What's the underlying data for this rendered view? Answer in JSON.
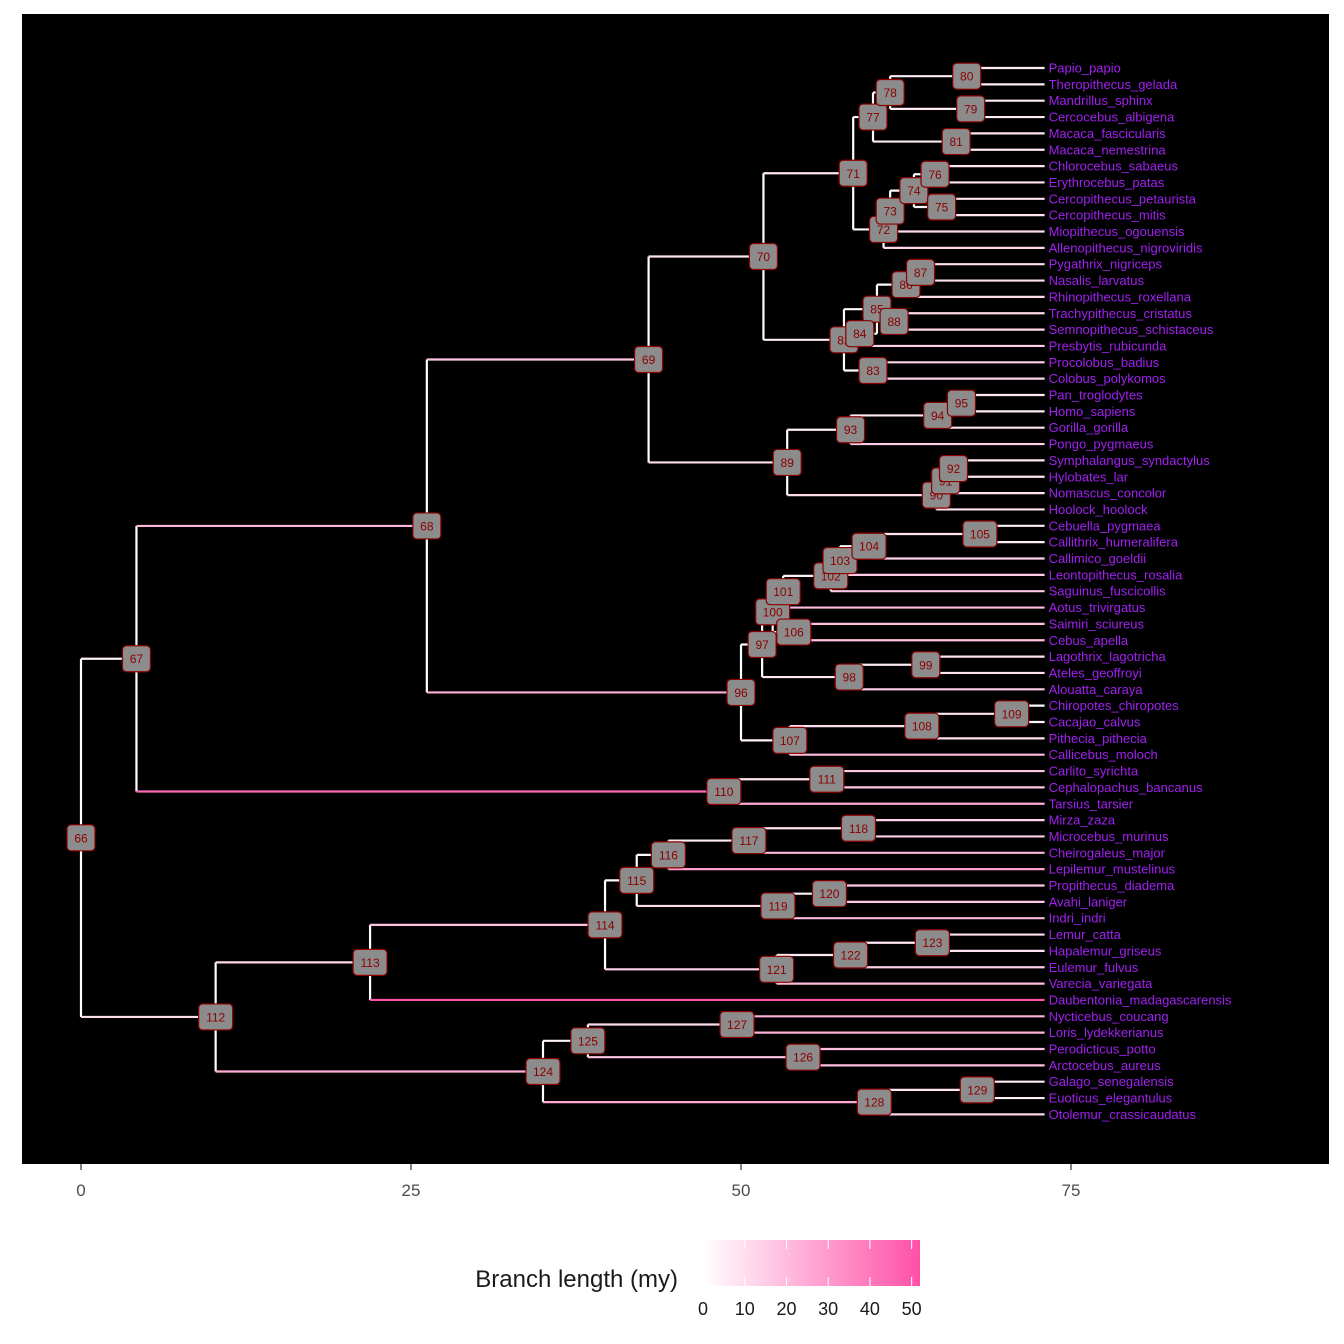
{
  "chart_data": {
    "type": "tree",
    "xaxis": {
      "ticks": [
        0,
        25,
        50,
        75
      ],
      "xlim": [
        -4.4,
        94.5
      ]
    },
    "legend": {
      "title": "Branch length (my)",
      "ticks": [
        0,
        10,
        20,
        30,
        40,
        50
      ],
      "range": [
        0,
        52
      ],
      "colors": [
        "#ffffff",
        "#ff50a8"
      ],
      "position": "bottom"
    },
    "colors": {
      "panel": "#000000",
      "tip_label": "#a020f0",
      "node_fill": "#8c8c8c",
      "node_border": "#8b0000",
      "node_text": "#8b0000"
    },
    "tips": [
      "Papio_papio",
      "Theropithecus_gelada",
      "Mandrillus_sphinx",
      "Cercocebus_albigena",
      "Macaca_fascicularis",
      "Macaca_nemestrina",
      "Chlorocebus_sabaeus",
      "Erythrocebus_patas",
      "Cercopithecus_petaurista",
      "Cercopithecus_mitis",
      "Miopithecus_ogouensis",
      "Allenopithecus_nigroviridis",
      "Pygathrix_nigriceps",
      "Nasalis_larvatus",
      "Rhinopithecus_roxellana",
      "Trachypithecus_cristatus",
      "Semnopithecus_schistaceus",
      "Presbytis_rubicunda",
      "Procolobus_badius",
      "Colobus_polykomos",
      "Pan_troglodytes",
      "Homo_sapiens",
      "Gorilla_gorilla",
      "Pongo_pygmaeus",
      "Symphalangus_syndactylus",
      "Hylobates_lar",
      "Nomascus_concolor",
      "Hoolock_hoolock",
      "Cebuella_pygmaea",
      "Callithrix_humeralifera",
      "Callimico_goeldii",
      "Leontopithecus_rosalia",
      "Saguinus_fuscicollis",
      "Aotus_trivirgatus",
      "Saimiri_sciureus",
      "Cebus_apella",
      "Lagothrix_lagotricha",
      "Ateles_geoffroyi",
      "Alouatta_caraya",
      "Chiropotes_chiropotes",
      "Cacajao_calvus",
      "Pithecia_pithecia",
      "Callicebus_moloch",
      "Carlito_syrichta",
      "Cephalopachus_bancanus",
      "Tarsius_tarsier",
      "Mirza_zaza",
      "Microcebus_murinus",
      "Cheirogaleus_major",
      "Lepilemur_mustelinus",
      "Propithecus_diadema",
      "Avahi_laniger",
      "Indri_indri",
      "Lemur_catta",
      "Hapalemur_griseus",
      "Eulemur_fulvus",
      "Varecia_variegata",
      "Daubentonia_madagascarensis",
      "Nycticebus_coucang",
      "Loris_lydekkerianus",
      "Perodicticus_potto",
      "Arctocebus_aureus",
      "Galago_senegalensis",
      "Euoticus_elegantulus",
      "Otolemur_crassicaudatus"
    ],
    "tip_depth": 73,
    "nodes": [
      {
        "id": "66",
        "x": 0,
        "children": [
          "67",
          "112"
        ]
      },
      {
        "id": "67",
        "x": 4.2,
        "children": [
          "68",
          "110"
        ]
      },
      {
        "id": "68",
        "x": 26.2,
        "children": [
          "69",
          "96"
        ]
      },
      {
        "id": "69",
        "x": 43,
        "children": [
          "70",
          "89"
        ]
      },
      {
        "id": "70",
        "x": 51.7,
        "children": [
          "71",
          "82"
        ]
      },
      {
        "id": "71",
        "x": 58.5,
        "children": [
          "77",
          "72"
        ]
      },
      {
        "id": "77",
        "x": 60.0,
        "children": [
          "78",
          "81"
        ]
      },
      {
        "id": "78",
        "x": 61.3,
        "children": [
          "80",
          "79"
        ]
      },
      {
        "id": "80",
        "x": 67.1,
        "children": [
          "t:Papio_papio",
          "t:Theropithecus_gelada"
        ]
      },
      {
        "id": "79",
        "x": 67.4,
        "children": [
          "t:Mandrillus_sphinx",
          "t:Cercocebus_albigena"
        ]
      },
      {
        "id": "81",
        "x": 66.3,
        "children": [
          "t:Macaca_fascicularis",
          "t:Macaca_nemestrina"
        ]
      },
      {
        "id": "72",
        "x": 60.8,
        "children": [
          "73",
          "t:Allenopithecus_nigroviridis"
        ]
      },
      {
        "id": "73",
        "x": 61.3,
        "children": [
          "74",
          "t:Miopithecus_ogouensis"
        ]
      },
      {
        "id": "74",
        "x": 63.1,
        "children": [
          "76",
          "75"
        ]
      },
      {
        "id": "76",
        "x": 64.7,
        "children": [
          "t:Chlorocebus_sabaeus",
          "t:Erythrocebus_patas"
        ]
      },
      {
        "id": "75",
        "x": 65.2,
        "children": [
          "t:Cercopithecus_petaurista",
          "t:Cercopithecus_mitis"
        ]
      },
      {
        "id": "82",
        "x": 57.8,
        "children": [
          "85",
          "83"
        ]
      },
      {
        "id": "85",
        "x": 60.3,
        "children": [
          "86",
          "84"
        ]
      },
      {
        "id": "86",
        "x": 62.5,
        "children": [
          "87",
          "t:Rhinopithecus_roxellana"
        ]
      },
      {
        "id": "87",
        "x": 63.6,
        "children": [
          "t:Pygathrix_nigriceps",
          "t:Nasalis_larvatus"
        ]
      },
      {
        "id": "84",
        "x": 59.0,
        "children": [
          "88",
          "t:Presbytis_rubicunda"
        ]
      },
      {
        "id": "88",
        "x": 61.6,
        "children": [
          "t:Trachypithecus_cristatus",
          "t:Semnopithecus_schistaceus"
        ]
      },
      {
        "id": "83",
        "x": 60.0,
        "children": [
          "t:Procolobus_badius",
          "t:Colobus_polykomos"
        ]
      },
      {
        "id": "89",
        "x": 53.5,
        "children": [
          "93",
          "90"
        ]
      },
      {
        "id": "93",
        "x": 58.3,
        "children": [
          "94",
          "t:Pongo_pygmaeus"
        ]
      },
      {
        "id": "94",
        "x": 64.9,
        "children": [
          "95",
          "t:Gorilla_gorilla"
        ]
      },
      {
        "id": "95",
        "x": 66.7,
        "children": [
          "t:Pan_troglodytes",
          "t:Homo_sapiens"
        ]
      },
      {
        "id": "90",
        "x": 64.8,
        "children": [
          "91",
          "t:Hoolock_hoolock"
        ]
      },
      {
        "id": "91",
        "x": 65.5,
        "children": [
          "92",
          "t:Nomascus_concolor"
        ]
      },
      {
        "id": "92",
        "x": 66.1,
        "children": [
          "t:Symphalangus_syndactylus",
          "t:Hylobates_lar"
        ]
      },
      {
        "id": "96",
        "x": 50,
        "children": [
          "97",
          "107"
        ]
      },
      {
        "id": "97",
        "x": 51.6,
        "children": [
          "100",
          "98"
        ]
      },
      {
        "id": "100",
        "x": 52.4,
        "children": [
          "101",
          "106"
        ]
      },
      {
        "id": "101",
        "x": 53.2,
        "children": [
          "102",
          "t:Aotus_trivirgatus"
        ]
      },
      {
        "id": "102",
        "x": 56.8,
        "children": [
          "103",
          "t:Saguinus_fuscicollis"
        ]
      },
      {
        "id": "103",
        "x": 57.5,
        "children": [
          "104",
          "t:Leontopithecus_rosalia"
        ]
      },
      {
        "id": "104",
        "x": 59.7,
        "children": [
          "105",
          "t:Callimico_goeldii"
        ]
      },
      {
        "id": "105",
        "x": 68.1,
        "children": [
          "t:Cebuella_pygmaea",
          "t:Callithrix_humeralifera"
        ]
      },
      {
        "id": "106",
        "x": 54.0,
        "children": [
          "t:Saimiri_sciureus",
          "t:Cebus_apella"
        ]
      },
      {
        "id": "98",
        "x": 58.2,
        "children": [
          "99",
          "t:Alouatta_caraya"
        ]
      },
      {
        "id": "99",
        "x": 64.0,
        "children": [
          "t:Lagothrix_lagotricha",
          "t:Ateles_geoffroyi"
        ]
      },
      {
        "id": "107",
        "x": 53.7,
        "children": [
          "108",
          "t:Callicebus_moloch"
        ]
      },
      {
        "id": "108",
        "x": 63.7,
        "children": [
          "109",
          "t:Pithecia_pithecia"
        ]
      },
      {
        "id": "109",
        "x": 70.5,
        "children": [
          "t:Chiropotes_chiropotes",
          "t:Cacajao_calvus"
        ]
      },
      {
        "id": "110",
        "x": 48.7,
        "children": [
          "111",
          "t:Tarsius_tarsier"
        ]
      },
      {
        "id": "111",
        "x": 56.5,
        "children": [
          "t:Carlito_syrichta",
          "t:Cephalopachus_bancanus"
        ]
      },
      {
        "id": "112",
        "x": 10.2,
        "children": [
          "113",
          "124"
        ]
      },
      {
        "id": "113",
        "x": 21.9,
        "children": [
          "114",
          "t:Daubentonia_madagascarensis"
        ]
      },
      {
        "id": "114",
        "x": 39.7,
        "children": [
          "115",
          "121"
        ]
      },
      {
        "id": "115",
        "x": 42.1,
        "children": [
          "116",
          "119"
        ]
      },
      {
        "id": "116",
        "x": 44.5,
        "children": [
          "117",
          "t:Lepilemur_mustelinus"
        ]
      },
      {
        "id": "117",
        "x": 50.6,
        "children": [
          "118",
          "t:Cheirogaleus_major"
        ]
      },
      {
        "id": "118",
        "x": 58.9,
        "children": [
          "t:Mirza_zaza",
          "t:Microcebus_murinus"
        ]
      },
      {
        "id": "119",
        "x": 52.8,
        "children": [
          "120",
          "t:Indri_indri"
        ]
      },
      {
        "id": "120",
        "x": 56.7,
        "children": [
          "t:Propithecus_diadema",
          "t:Avahi_laniger"
        ]
      },
      {
        "id": "121",
        "x": 52.7,
        "children": [
          "122",
          "t:Varecia_variegata"
        ]
      },
      {
        "id": "122",
        "x": 58.3,
        "children": [
          "123",
          "t:Eulemur_fulvus"
        ]
      },
      {
        "id": "123",
        "x": 64.5,
        "children": [
          "t:Lemur_catta",
          "t:Hapalemur_griseus"
        ]
      },
      {
        "id": "124",
        "x": 35,
        "children": [
          "125",
          "128"
        ]
      },
      {
        "id": "125",
        "x": 38.4,
        "children": [
          "127",
          "126"
        ]
      },
      {
        "id": "127",
        "x": 49.7,
        "children": [
          "t:Nycticebus_coucang",
          "t:Loris_lydekkerianus"
        ]
      },
      {
        "id": "126",
        "x": 54.7,
        "children": [
          "t:Perodicticus_potto",
          "t:Arctocebus_aureus"
        ]
      },
      {
        "id": "128",
        "x": 60.1,
        "children": [
          "129",
          "t:Otolemur_crassicaudatus"
        ]
      },
      {
        "id": "129",
        "x": 67.9,
        "children": [
          "t:Galago_senegalensis",
          "t:Euoticus_elegantulus"
        ]
      }
    ]
  }
}
